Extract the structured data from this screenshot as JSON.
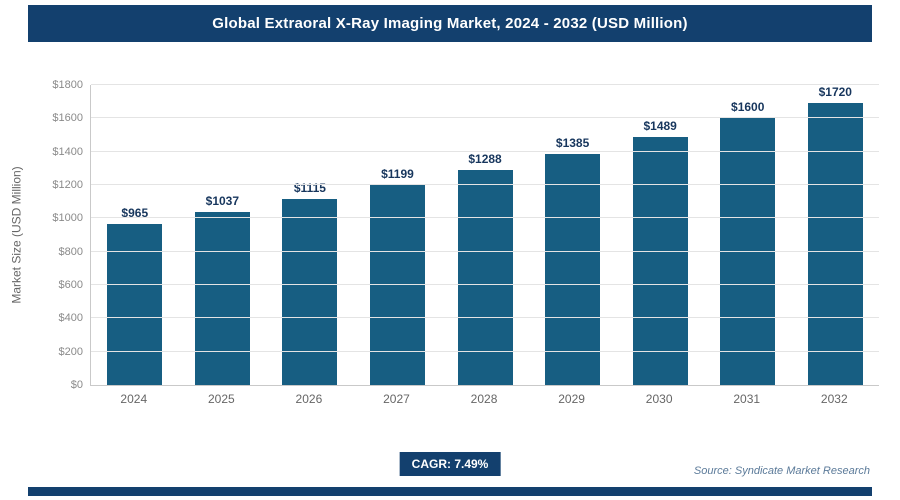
{
  "header": {
    "title": "Global Extraoral X-Ray Imaging Market, 2024 - 2032 (USD Million)"
  },
  "chart_data": {
    "type": "bar",
    "title": "Global Extraoral X-Ray Imaging Market, 2024 - 2032 (USD Million)",
    "categories": [
      "2024",
      "2025",
      "2026",
      "2027",
      "2028",
      "2029",
      "2030",
      "2031",
      "2032"
    ],
    "values": [
      965,
      1037,
      1115,
      1199,
      1288,
      1385,
      1489,
      1600,
      1720
    ],
    "labels": [
      "$965",
      "$1037",
      "$1115",
      "$1199",
      "$1288",
      "$1385",
      "$1489",
      "$1600",
      "$1720"
    ],
    "xlabel": "",
    "ylabel": "Market Size (USD Million)",
    "ylim": [
      0,
      1800
    ],
    "ytick_step": 200,
    "yticks": [
      "$0",
      "$200",
      "$400",
      "$600",
      "$800",
      "$1000",
      "$1200",
      "$1400",
      "$1600",
      "$1800"
    ],
    "grid": true,
    "legend": "none",
    "bar_color": "#175e82"
  },
  "footer": {
    "cagr_label": "CAGR: 7.49%",
    "source": "Source: Syndicate Market Research"
  },
  "colors": {
    "header_bg": "#13406e",
    "bar": "#175e82",
    "value_label": "#17365d"
  }
}
